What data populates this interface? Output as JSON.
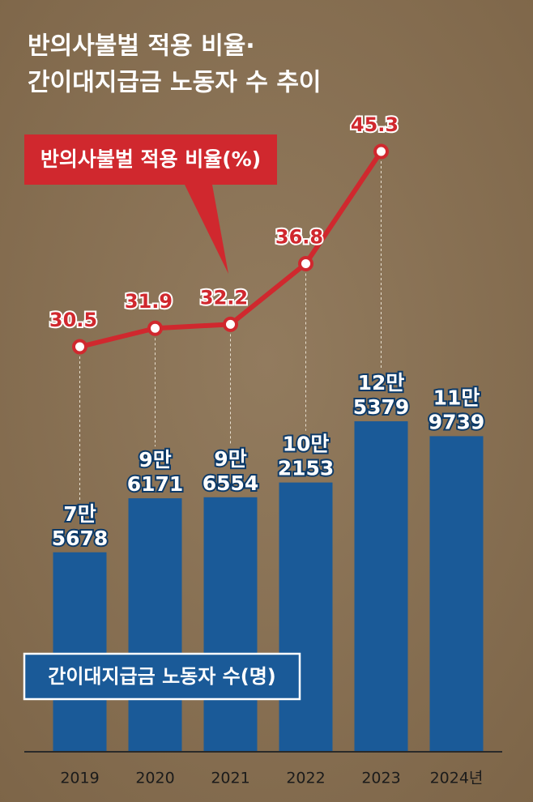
{
  "chart_data": {
    "type": "bar-line",
    "title": [
      "반의사불벌 적용 비율·",
      "간이대지급금 노동자 수 추이"
    ],
    "categories": [
      "2019",
      "2020",
      "2021",
      "2022",
      "2023",
      "2024년"
    ],
    "series": [
      {
        "name": "간이대지급금 노동자 수(명)",
        "type": "bar",
        "color": "#1a5a98",
        "values": [
          75678,
          96171,
          96554,
          102153,
          125379,
          119739
        ],
        "value_labels": [
          [
            "7만",
            "5678"
          ],
          [
            "9만",
            "6171"
          ],
          [
            "9만",
            "6554"
          ],
          [
            "10만",
            "2153"
          ],
          [
            "12만",
            "5379"
          ],
          [
            "11만",
            "9739"
          ]
        ]
      },
      {
        "name": "반의사불벌 적용 비율(%)",
        "type": "line",
        "axis": "y2",
        "color": "#d0282e",
        "values": [
          30.5,
          31.9,
          32.2,
          36.8,
          45.3,
          null
        ]
      }
    ],
    "ylim": [
      0,
      130000
    ],
    "y2lim": [
      20,
      50
    ]
  }
}
